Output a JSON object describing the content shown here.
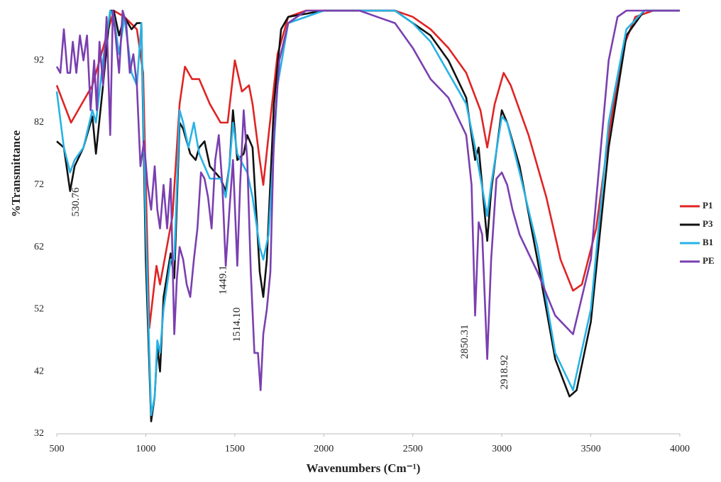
{
  "chart_data": {
    "type": "line",
    "y_label": "%Transmittance",
    "x_label": "Wavenumbers (Cm⁻¹)",
    "xlim": [
      500,
      4000
    ],
    "xticks": [
      500,
      1000,
      1500,
      2000,
      2500,
      3000,
      3500,
      4000
    ],
    "ylim": [
      32,
      100
    ],
    "yticks": [
      32,
      42,
      52,
      62,
      72,
      82,
      92
    ],
    "grid": false,
    "legend": "right",
    "annotations": [
      {
        "text": "530.76",
        "x": 530.76
      },
      {
        "text": "1449.1",
        "x": 1449.1
      },
      {
        "text": "1514.10",
        "x": 1514.1
      },
      {
        "text": "2850.31",
        "x": 2850.31
      },
      {
        "text": "2918.92",
        "x": 2918.92
      }
    ],
    "series": [
      {
        "name": "P1",
        "color": "#e02424",
        "x": [
          500,
          580,
          700,
          820,
          880,
          950,
          985,
          1020,
          1060,
          1080,
          1150,
          1190,
          1220,
          1260,
          1300,
          1360,
          1420,
          1460,
          1500,
          1540,
          1580,
          1600,
          1640,
          1660,
          1690,
          1740,
          1800,
          1900,
          2000,
          2400,
          2500,
          2600,
          2700,
          2800,
          2880,
          2918,
          2960,
          3010,
          3050,
          3150,
          3250,
          3330,
          3400,
          3450,
          3530,
          3600,
          3680,
          3750,
          3850,
          4000
        ],
        "values": [
          88,
          82,
          88,
          100,
          99,
          97,
          90,
          49,
          59,
          56,
          67,
          85,
          91,
          89,
          89,
          85,
          82,
          82,
          92,
          87,
          88,
          85,
          76,
          72,
          80,
          93,
          99,
          100,
          100,
          100,
          99,
          97,
          94,
          90,
          84,
          78,
          85,
          90,
          88,
          80,
          70,
          60,
          55,
          56,
          65,
          80,
          94,
          99,
          100,
          100
        ]
      },
      {
        "name": "P3",
        "color": "#111111",
        "x": [
          500,
          540,
          575,
          600,
          650,
          700,
          720,
          760,
          800,
          820,
          850,
          880,
          920,
          950,
          975,
          1000,
          1030,
          1050,
          1065,
          1080,
          1100,
          1140,
          1160,
          1190,
          1210,
          1250,
          1280,
          1300,
          1330,
          1360,
          1420,
          1449,
          1470,
          1490,
          1514,
          1550,
          1570,
          1600,
          1640,
          1660,
          1680,
          1720,
          1760,
          1800,
          2000,
          2400,
          2500,
          2600,
          2700,
          2800,
          2850,
          2870,
          2918,
          2940,
          3000,
          3030,
          3100,
          3200,
          3300,
          3380,
          3420,
          3500,
          3600,
          3700,
          3800,
          4000
        ],
        "values": [
          79,
          78,
          71,
          75,
          78,
          83,
          77,
          88,
          100,
          100,
          96,
          99,
          97,
          98,
          98,
          60,
          34,
          38,
          46,
          42,
          54,
          61,
          57,
          82,
          81,
          77,
          76,
          78,
          79,
          75,
          73,
          71,
          75,
          84,
          76,
          77,
          80,
          78,
          58,
          54,
          60,
          85,
          97,
          99,
          100,
          100,
          98,
          96,
          92,
          86,
          76,
          78,
          63,
          71,
          84,
          82,
          75,
          60,
          44,
          38,
          39,
          50,
          78,
          96,
          100,
          100
        ]
      },
      {
        "name": "B1",
        "color": "#27b3e6",
        "x": [
          500,
          540,
          575,
          600,
          650,
          700,
          720,
          760,
          800,
          820,
          850,
          880,
          920,
          950,
          975,
          1000,
          1030,
          1050,
          1065,
          1080,
          1100,
          1140,
          1160,
          1190,
          1210,
          1240,
          1270,
          1300,
          1360,
          1420,
          1449,
          1470,
          1490,
          1514,
          1550,
          1570,
          1600,
          1640,
          1660,
          1690,
          1740,
          1800,
          2000,
          2400,
          2500,
          2600,
          2700,
          2800,
          2850,
          2918,
          2940,
          3000,
          3030,
          3100,
          3200,
          3300,
          3400,
          3500,
          3600,
          3700,
          3800,
          4000
        ],
        "values": [
          87,
          78,
          74,
          76,
          78,
          84,
          82,
          92,
          100,
          99,
          93,
          99,
          90,
          88,
          98,
          65,
          35,
          38,
          47,
          45,
          52,
          60,
          60,
          84,
          82,
          78,
          82,
          77,
          73,
          73,
          70,
          75,
          82,
          77,
          75,
          74,
          70,
          62,
          60,
          64,
          88,
          98,
          100,
          100,
          98,
          95,
          90,
          85,
          78,
          67,
          72,
          83,
          82,
          74,
          62,
          45,
          39,
          52,
          82,
          97,
          100,
          100
        ]
      },
      {
        "name": "PE",
        "color": "#7a3fb0",
        "x": [
          500,
          520,
          540,
          560,
          575,
          590,
          610,
          630,
          650,
          670,
          690,
          710,
          725,
          740,
          760,
          780,
          800,
          815,
          830,
          850,
          870,
          890,
          910,
          930,
          950,
          970,
          990,
          1010,
          1030,
          1050,
          1065,
          1080,
          1100,
          1120,
          1140,
          1160,
          1175,
          1190,
          1210,
          1230,
          1250,
          1270,
          1290,
          1310,
          1330,
          1350,
          1370,
          1390,
          1410,
          1430,
          1449,
          1470,
          1490,
          1514,
          1530,
          1550,
          1570,
          1590,
          1610,
          1630,
          1645,
          1660,
          1680,
          1700,
          1720,
          1750,
          1800,
          1900,
          2000,
          2100,
          2200,
          2300,
          2400,
          2500,
          2600,
          2700,
          2800,
          2830,
          2850,
          2870,
          2890,
          2918,
          2940,
          2970,
          3000,
          3030,
          3060,
          3100,
          3200,
          3300,
          3400,
          3500,
          3600,
          3650,
          3700,
          3800,
          4000
        ],
        "values": [
          91,
          90,
          97,
          90,
          90,
          95,
          90,
          96,
          92,
          96,
          84,
          92,
          84,
          95,
          88,
          99,
          80,
          100,
          96,
          90,
          100,
          98,
          90,
          93,
          88,
          75,
          79,
          72,
          68,
          75,
          68,
          65,
          72,
          65,
          73,
          48,
          57,
          62,
          60,
          56,
          54,
          60,
          65,
          74,
          73,
          70,
          65,
          76,
          80,
          72,
          59,
          68,
          76,
          59,
          72,
          84,
          76,
          58,
          45,
          45,
          39,
          48,
          52,
          58,
          80,
          92,
          98,
          100,
          100,
          100,
          100,
          99,
          98,
          94,
          89,
          86,
          80,
          72,
          51,
          66,
          64,
          44,
          60,
          73,
          74,
          72,
          68,
          64,
          58,
          51,
          48,
          60,
          92,
          99,
          100,
          100,
          100
        ]
      }
    ]
  }
}
